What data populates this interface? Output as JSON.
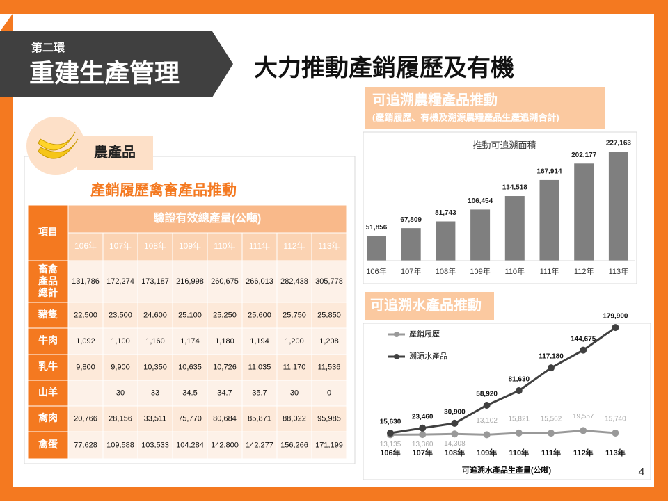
{
  "header": {
    "section": "第二環",
    "section_title": "重建生產管理",
    "title": "大力推動產銷履歷及有機"
  },
  "table_panel": {
    "tab": "農產品",
    "title": "產銷履歷禽畜產品推動",
    "table": {
      "corner": "項目",
      "group_header": "驗證有效總產量(公噸)",
      "columns": [
        "106年",
        "107年",
        "108年",
        "109年",
        "110年",
        "111年",
        "112年",
        "113年"
      ],
      "rows": [
        {
          "label": "畜禽產品總計",
          "values": [
            "131,786",
            "172,274",
            "173,187",
            "216,998",
            "260,675",
            "266,013",
            "282,438",
            "305,778"
          ]
        },
        {
          "label": "豬隻",
          "values": [
            "22,500",
            "23,500",
            "24,600",
            "25,100",
            "25,250",
            "25,600",
            "25,750",
            "25,850"
          ]
        },
        {
          "label": "牛肉",
          "values": [
            "1,092",
            "1,100",
            "1,160",
            "1,174",
            "1,180",
            "1,194",
            "1,200",
            "1,208"
          ]
        },
        {
          "label": "乳牛",
          "values": [
            "9,800",
            "9,900",
            "10,350",
            "10,635",
            "10,726",
            "11,035",
            "11,170",
            "11,536"
          ]
        },
        {
          "label": "山羊",
          "values": [
            "--",
            "30",
            "33",
            "34.5",
            "34.7",
            "35.7",
            "30",
            "0"
          ]
        },
        {
          "label": "禽肉",
          "values": [
            "20,766",
            "28,156",
            "33,511",
            "75,770",
            "80,684",
            "85,871",
            "88,022",
            "95,985"
          ]
        },
        {
          "label": "禽蛋",
          "values": [
            "77,628",
            "109,588",
            "103,533",
            "104,284",
            "142,800",
            "142,277",
            "156,266",
            "171,199"
          ]
        }
      ]
    }
  },
  "chart_panels": [
    {
      "title": "可追溯農糧產品推動",
      "subtitle": "(產銷履歷、有機及溯源農糧產品生產追溯合計)"
    },
    {
      "title": "可追溯水產品推動"
    }
  ],
  "page_number": "4",
  "chart_data": [
    {
      "type": "bar",
      "title": "推動可追溯面積",
      "color": "#7f7f7f",
      "categories": [
        "106年",
        "107年",
        "108年",
        "109年",
        "110年",
        "111年",
        "112年",
        "113年"
      ],
      "values": [
        51856,
        67809,
        81743,
        106454,
        134518,
        167914,
        202177,
        227163
      ],
      "value_labels": [
        "51,856",
        "67,809",
        "81,743",
        "106,454",
        "134,518",
        "167,914",
        "202,177",
        "227,163"
      ]
    },
    {
      "type": "line",
      "x_label": "可追溯水產品生產量(公噸)",
      "categories": [
        "106年",
        "107年",
        "108年",
        "109年",
        "110年",
        "111年",
        "112年",
        "113年"
      ],
      "series": [
        {
          "name": "產銷履歷",
          "color": "#999999",
          "values": [
            13135,
            13360,
            14308,
            13102,
            15821,
            15562,
            19557,
            15740
          ],
          "value_labels": [
            "13,135",
            "13,360",
            "14,308",
            "13,102",
            "15,821",
            "15,562",
            "19,557",
            "15,740"
          ]
        },
        {
          "name": "溯源水產品",
          "color": "#404040",
          "values": [
            15630,
            23460,
            30900,
            58920,
            81630,
            117180,
            144675,
            179900
          ],
          "value_labels": [
            "15,630",
            "23,460",
            "30,900",
            "58,920",
            "81,630",
            "117,180",
            "144,675",
            "179,900"
          ]
        }
      ]
    }
  ]
}
